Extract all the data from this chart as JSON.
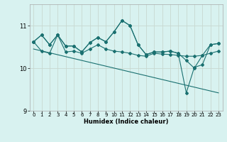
{
  "xlabel": "Humidex (Indice chaleur)",
  "bg_color": "#d8f2f0",
  "line_color": "#1a7070",
  "grid_color": "#c8d8d0",
  "xlim": [
    -0.5,
    23.5
  ],
  "ylim": [
    9,
    11.5
  ],
  "yticks": [
    9,
    10,
    11
  ],
  "xticks": [
    0,
    1,
    2,
    3,
    4,
    5,
    6,
    7,
    8,
    9,
    10,
    11,
    12,
    13,
    14,
    15,
    16,
    17,
    18,
    19,
    20,
    21,
    22,
    23
  ],
  "line1_x": [
    0,
    1,
    2,
    3,
    4,
    5,
    6,
    7,
    8,
    9,
    10,
    11,
    12,
    13,
    14,
    15,
    16,
    17,
    18,
    19,
    20,
    21,
    22,
    23
  ],
  "line1_y": [
    10.62,
    10.78,
    10.55,
    10.78,
    10.52,
    10.52,
    10.38,
    10.6,
    10.72,
    10.62,
    10.85,
    11.12,
    11.0,
    10.55,
    10.32,
    10.38,
    10.38,
    10.4,
    10.35,
    10.18,
    10.0,
    10.3,
    10.55,
    10.58
  ],
  "line2_x": [
    0,
    1,
    2,
    3,
    4,
    5,
    6,
    7,
    8,
    9,
    10,
    11,
    12,
    13,
    14,
    15,
    16,
    17,
    18,
    19,
    20,
    21,
    22,
    23
  ],
  "line2_y": [
    10.62,
    10.4,
    10.35,
    10.78,
    10.38,
    10.4,
    10.35,
    10.45,
    10.55,
    10.45,
    10.4,
    10.38,
    10.35,
    10.3,
    10.28,
    10.35,
    10.33,
    10.32,
    10.3,
    10.28,
    10.28,
    10.3,
    10.35,
    10.4
  ],
  "line3_x": [
    0,
    1,
    2,
    3,
    4,
    5,
    6,
    7,
    8,
    9,
    10,
    11,
    12,
    13,
    14,
    15,
    16,
    17,
    18,
    19,
    20,
    21,
    22,
    23
  ],
  "line3_y": [
    10.62,
    10.78,
    10.55,
    10.78,
    10.52,
    10.52,
    10.38,
    10.6,
    10.72,
    10.62,
    10.85,
    11.12,
    11.0,
    10.55,
    10.32,
    10.38,
    10.38,
    10.4,
    10.35,
    9.42,
    10.02,
    10.08,
    10.55,
    10.58
  ],
  "line4_x": [
    0,
    23
  ],
  "line4_y": [
    10.45,
    9.42
  ]
}
